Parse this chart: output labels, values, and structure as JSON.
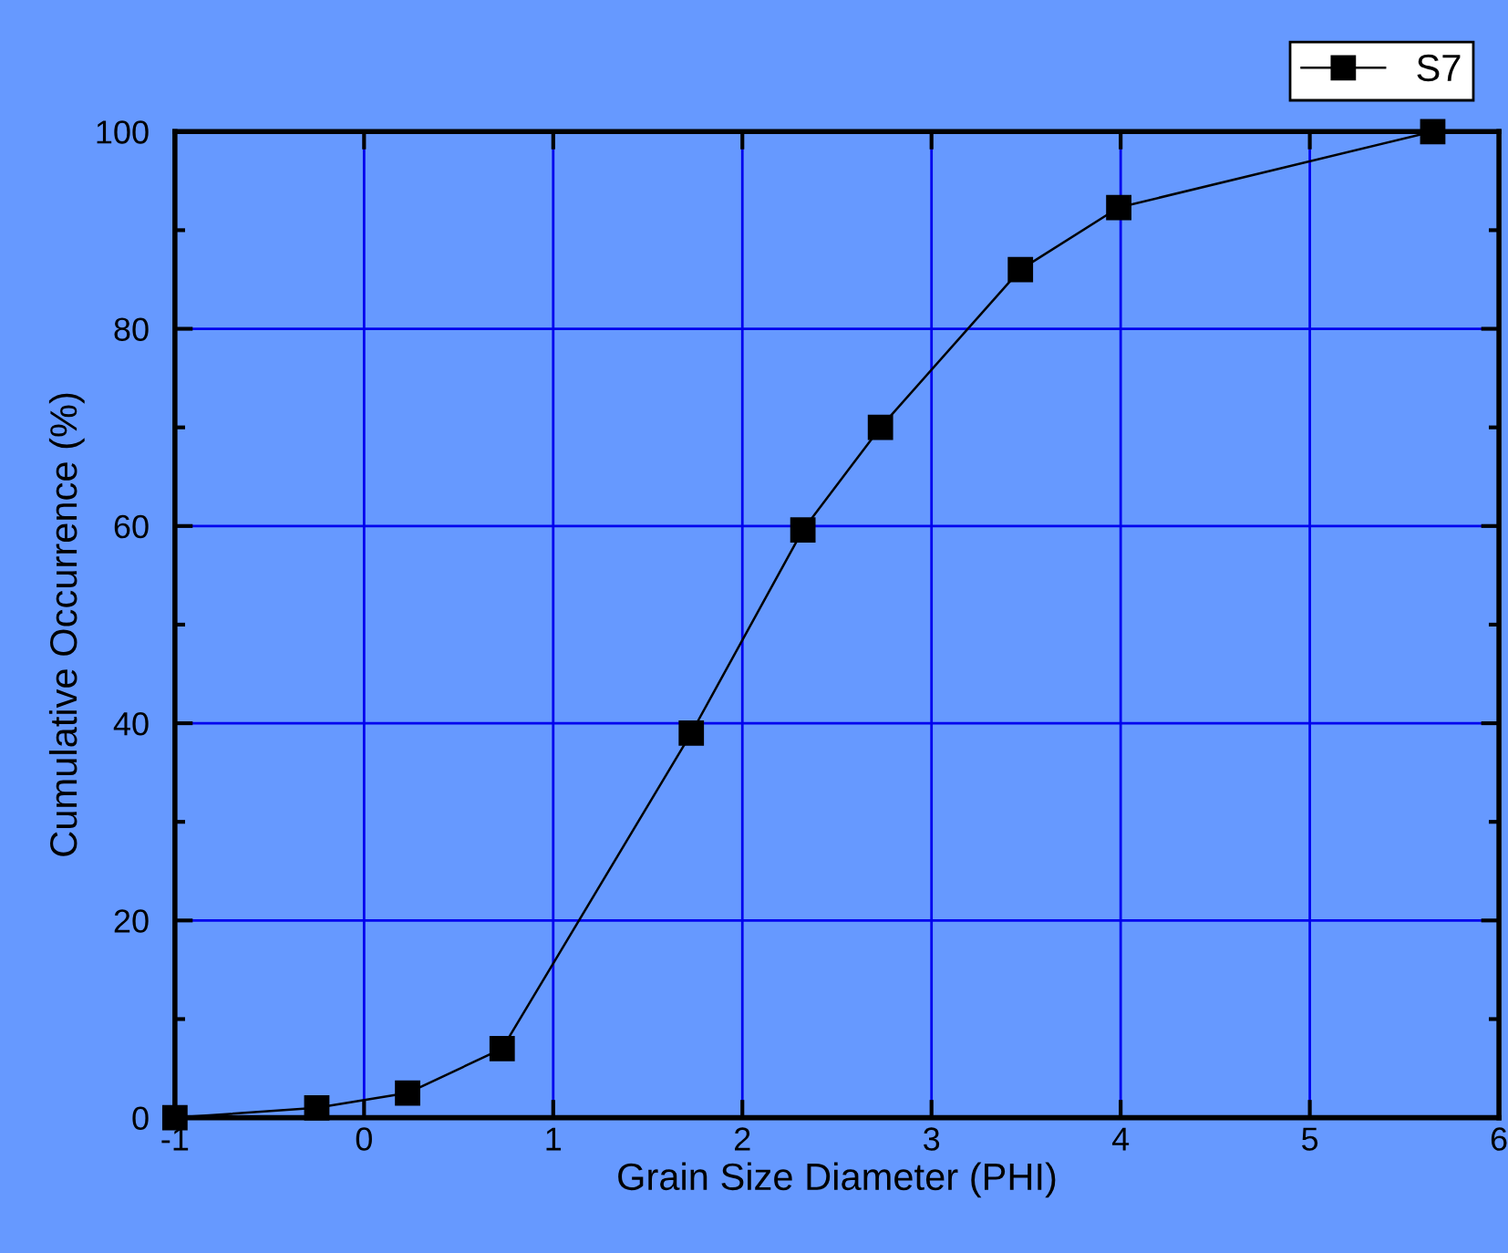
{
  "chart_data": {
    "type": "line",
    "xlabel": "Grain Size Diameter (PHI)",
    "ylabel": "Cumulative Occurrence (%)",
    "x": [
      -1,
      -0.25,
      0.23,
      0.73,
      1.73,
      2.32,
      2.73,
      3.47,
      3.99,
      5.65
    ],
    "series": [
      {
        "name": "S7",
        "color": "#000000",
        "values": [
          0,
          1,
          2.5,
          7,
          39,
          59.6,
          70,
          86,
          92.3,
          100
        ]
      }
    ],
    "xlim": [
      -1,
      6
    ],
    "xticks": [
      -1,
      0,
      1,
      2,
      3,
      4,
      5,
      6
    ],
    "ylim": [
      0,
      100
    ],
    "yticks": [
      0,
      20,
      40,
      60,
      80,
      100
    ],
    "grid": true,
    "legend": "top right",
    "marker": "square",
    "line_style": "solid"
  }
}
